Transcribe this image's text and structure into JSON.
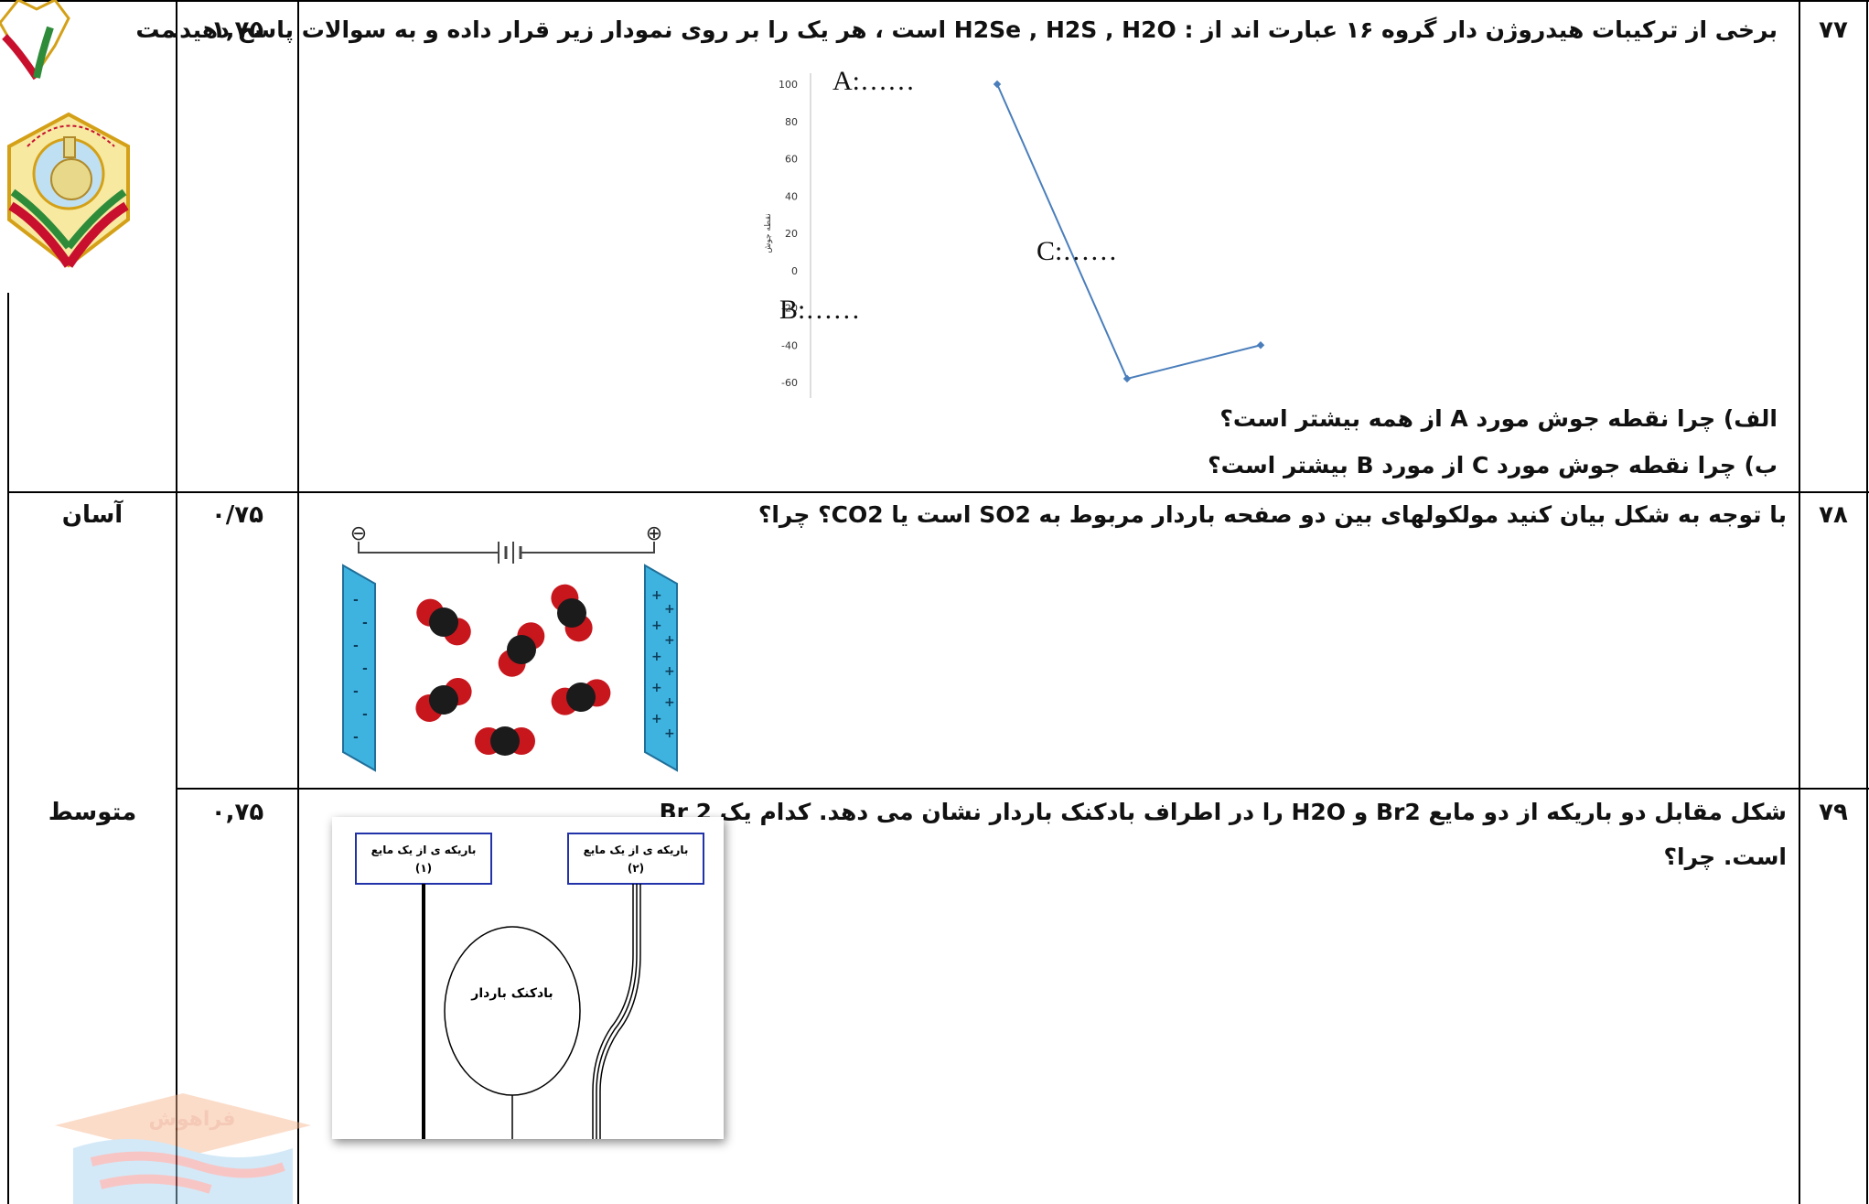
{
  "rows": [
    {
      "number": "۷۷",
      "score": "۱,۷۵",
      "level": "مت",
      "question": "برخی از ترکیبات هیدروژن دار گروه ۱۶ عبارت اند از : H2Se , H2S , H2O است ، هر یک را بر روی نمودار زیر قرار داده و به سوالات پاسخ دهید.",
      "sub_a": "الف) چرا نقطه جوش مورد A از همه بیشتر است؟",
      "sub_b": "ب) چرا نقطه جوش مورد C از مورد  B بیشتر است؟"
    },
    {
      "number": "۷۸",
      "score": "۰/۷۵",
      "level": "آسان",
      "question": "با توجه به شکل بیان کنید مولکولهای بین دو صفحه باردار مربوط به SO2 است یا CO2؟ چرا؟"
    },
    {
      "number": "۷۹",
      "score": "۰,۷۵",
      "level": "متوسط",
      "question_line1": "شکل مقابل دو باریکه از دو مایع Br2 و H2O را در اطراف بادکنک باردار نشان می دهد. کدام یک Br 2",
      "question_line2": "است. چرا؟"
    }
  ],
  "chart_data": {
    "type": "line",
    "ylabel": "نقطه جوش",
    "yticks": [
      100,
      80,
      60,
      40,
      20,
      0,
      -20,
      -40,
      -60
    ],
    "ylim": [
      -65,
      100
    ],
    "points": [
      {
        "label": "A:……",
        "y": 100
      },
      {
        "label": "B:……",
        "y": -58
      },
      {
        "label": "C:……",
        "y": -40
      }
    ],
    "line_color": "#4a7ebb"
  },
  "figure78": {
    "minus_sign": "⊖",
    "plus_sign": "⊕",
    "plate_color": "#3fb3e0"
  },
  "figure79": {
    "stream_left_label": "باریکه ی از یک مایع",
    "stream_left_num": "(۱)",
    "stream_right_label": "باریکه ی از یک مایع",
    "stream_right_num": "(۲)",
    "balloon_label": "بادکنک باردار"
  },
  "watermark": "فراهوش"
}
